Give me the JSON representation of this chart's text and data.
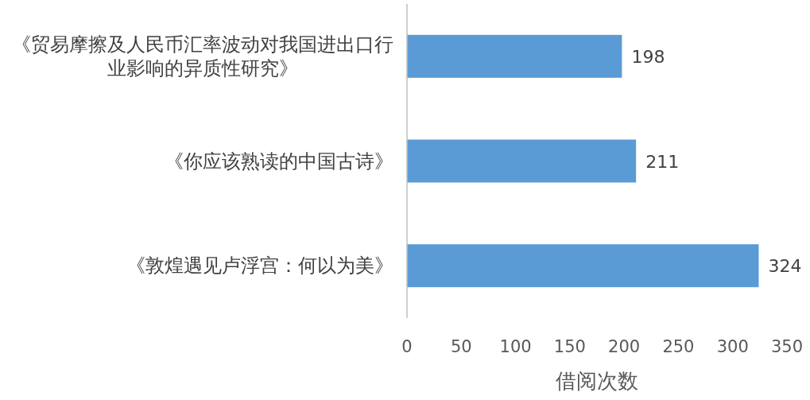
{
  "chart_data": {
    "type": "bar",
    "orientation": "horizontal",
    "xlabel": "借阅次数",
    "categories": [
      "《贸易摩擦及人民币汇率波动对我国进出口行业影响的异质性研究》",
      "《你应该熟读的中国古诗》",
      "《敦煌遇见卢浮宫：何以为美》"
    ],
    "values": [
      198,
      211,
      324
    ],
    "color": "#5b9bd5",
    "xlim": [
      0,
      350
    ],
    "xticks": [
      0,
      50,
      100,
      150,
      200,
      250,
      300,
      350
    ],
    "data_labels": true,
    "grid": false
  }
}
